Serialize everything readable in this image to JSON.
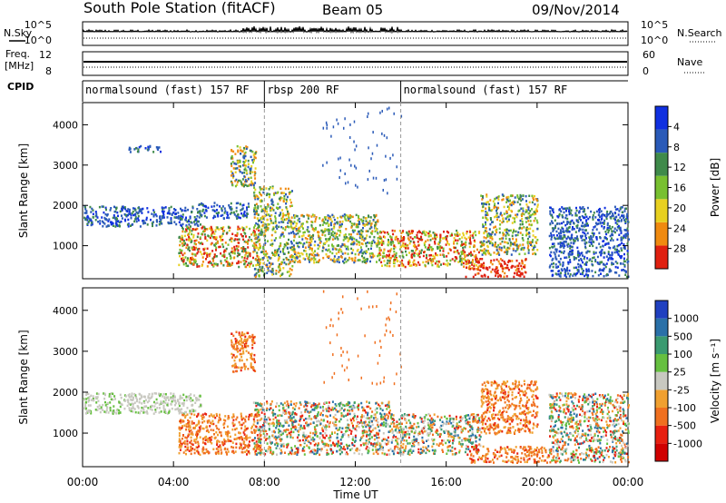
{
  "header": {
    "station": "South Pole Station (fitACF)",
    "beam": "Beam 05",
    "date": "09/Nov/2014"
  },
  "side_labels": {
    "nsky": "N.Sky",
    "nsearch": "N.Search",
    "freq_line1": "Freq.",
    "freq_line2": "[MHz]",
    "nave": "Nave",
    "cpid": "CPID"
  },
  "top_panel": {
    "left_ticks": [
      "10^5",
      "10^0"
    ],
    "right_ticks": [
      "10^5",
      "10^0"
    ]
  },
  "freq_panel": {
    "left_ticks": [
      "12",
      "8"
    ],
    "right_ticks": [
      "60",
      "0"
    ]
  },
  "cpid_segments": [
    {
      "label": "normalsound (fast) 157 RF",
      "start": "00:00",
      "end": "08:00"
    },
    {
      "label": "rbsp 200 RF",
      "start": "08:00",
      "end": "14:00"
    },
    {
      "label": "normalsound (fast) 157 RF",
      "start": "14:00",
      "end": "24:00"
    }
  ],
  "chart_data": [
    {
      "type": "heatmap",
      "title": "Power",
      "ylabel": "Slant Range [km]",
      "xlabel": "",
      "x_ticks": [
        "00:00",
        "04:00",
        "08:00",
        "12:00",
        "16:00",
        "20:00",
        "00:00"
      ],
      "y_ticks": [
        "1000",
        "2000",
        "3000",
        "4000"
      ],
      "ylim": [
        180,
        4550
      ],
      "colorbar": {
        "label": "Power [dB]",
        "ticks": [
          "4",
          "8",
          "12",
          "16",
          "20",
          "24",
          "28"
        ],
        "colors": [
          "#1030e0",
          "#2a5ab8",
          "#3f8a4a",
          "#78c030",
          "#e8d020",
          "#f08a10",
          "#e02010"
        ]
      },
      "echo_regions": [
        {
          "t0": 0.0,
          "t1": 5.2,
          "r0": 1500,
          "r1": 2000,
          "level": "low"
        },
        {
          "t0": 2.0,
          "t1": 3.5,
          "r0": 3350,
          "r1": 3500,
          "level": "low"
        },
        {
          "t0": 5.0,
          "t1": 7.3,
          "r0": 1700,
          "r1": 2100,
          "level": "low"
        },
        {
          "t0": 6.5,
          "t1": 7.6,
          "r0": 2500,
          "r1": 3500,
          "level": "mid"
        },
        {
          "t0": 4.2,
          "t1": 7.8,
          "r0": 500,
          "r1": 1500,
          "level": "high"
        },
        {
          "t0": 7.5,
          "t1": 9.2,
          "r0": 250,
          "r1": 2500,
          "level": "mid"
        },
        {
          "t0": 9.2,
          "t1": 13.0,
          "r0": 600,
          "r1": 1800,
          "level": "mid"
        },
        {
          "t0": 13.0,
          "t1": 17.5,
          "r0": 500,
          "r1": 1400,
          "level": "high"
        },
        {
          "t0": 16.8,
          "t1": 19.5,
          "r0": 250,
          "r1": 700,
          "level": "max"
        },
        {
          "t0": 17.5,
          "t1": 20.0,
          "r0": 800,
          "r1": 2300,
          "level": "mid"
        },
        {
          "t0": 20.5,
          "t1": 24.0,
          "r0": 250,
          "r1": 2000,
          "level": "low"
        }
      ]
    },
    {
      "type": "heatmap",
      "title": "Velocity",
      "ylabel": "Slant Range [km]",
      "xlabel": "Time UT",
      "x_ticks": [
        "00:00",
        "04:00",
        "08:00",
        "12:00",
        "16:00",
        "20:00",
        "00:00"
      ],
      "y_ticks": [
        "1000",
        "2000",
        "3000",
        "4000"
      ],
      "ylim": [
        180,
        4550
      ],
      "colorbar": {
        "label": "Velocity [m s⁻¹]",
        "ticks": [
          "1000",
          "500",
          "100",
          "25",
          "-25",
          "-100",
          "-500",
          "-1000"
        ],
        "colors": [
          "#2040c0",
          "#2a70a8",
          "#3a9a70",
          "#66c040",
          "#c8c8c0",
          "#f0a030",
          "#f07020",
          "#e82010",
          "#d00000"
        ]
      },
      "echo_regions": [
        {
          "t0": 0.0,
          "t1": 5.2,
          "r0": 1500,
          "r1": 2000,
          "level": "zero"
        },
        {
          "t0": 4.2,
          "t1": 7.8,
          "r0": 500,
          "r1": 1500,
          "level": "neg"
        },
        {
          "t0": 6.5,
          "t1": 7.6,
          "r0": 2500,
          "r1": 3500,
          "level": "neg"
        },
        {
          "t0": 7.5,
          "t1": 13.5,
          "r0": 500,
          "r1": 1800,
          "level": "mixed"
        },
        {
          "t0": 13.5,
          "t1": 17.5,
          "r0": 500,
          "r1": 1500,
          "level": "mixed"
        },
        {
          "t0": 17.0,
          "t1": 20.5,
          "r0": 300,
          "r1": 700,
          "level": "neg"
        },
        {
          "t0": 17.5,
          "t1": 20.0,
          "r0": 1000,
          "r1": 2300,
          "level": "neg"
        },
        {
          "t0": 20.5,
          "t1": 24.0,
          "r0": 300,
          "r1": 2000,
          "level": "mixed"
        }
      ]
    }
  ]
}
